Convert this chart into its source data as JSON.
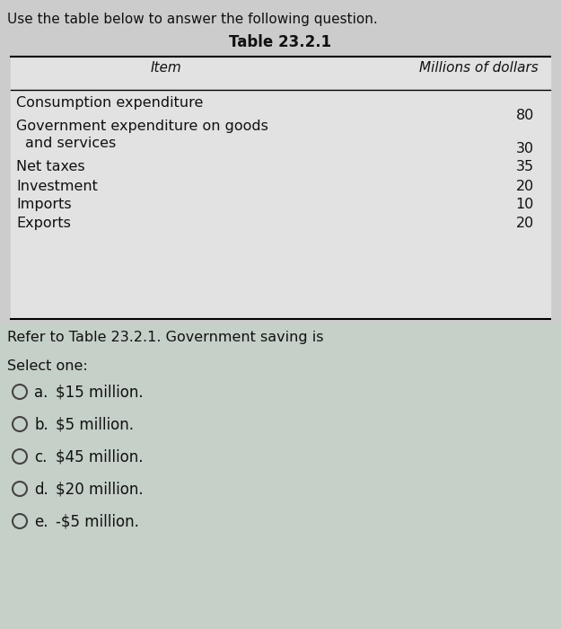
{
  "title_text": "Use the table below to answer the following question.",
  "table_title": "Table 23.2.1",
  "col_header_item": "Item",
  "col_header_millions": "Millions of dollars",
  "rows": [
    {
      "item": "Consumption expenditure",
      "value": "80",
      "multiline": false
    },
    {
      "item": "Government expenditure on goods",
      "item2": " and services",
      "value": "30",
      "multiline": true
    },
    {
      "item": "Net taxes",
      "value": "35",
      "multiline": false
    },
    {
      "item": "Investment",
      "value": "20",
      "multiline": false
    },
    {
      "item": "Imports",
      "value": "10",
      "multiline": false
    },
    {
      "item": "Exports",
      "value": "20",
      "multiline": false
    }
  ],
  "question_text": "Refer to Table 23.2.1. Government saving is",
  "select_text": "Select one:",
  "options": [
    {
      "letter": "a.",
      "text": "$15 million."
    },
    {
      "letter": "b.",
      "text": "$5 million."
    },
    {
      "letter": "c.",
      "text": "$45 million."
    },
    {
      "letter": "d.",
      "text": "$20 million."
    },
    {
      "letter": "e.",
      "text": "-$5 million."
    }
  ],
  "bg_color_top": "#cccccc",
  "bg_color_bottom": "#c5d0c8",
  "table_bg": "#e2e2e2",
  "text_color": "#111111",
  "fig_width": 6.25,
  "fig_height": 7.0,
  "dpi": 100
}
